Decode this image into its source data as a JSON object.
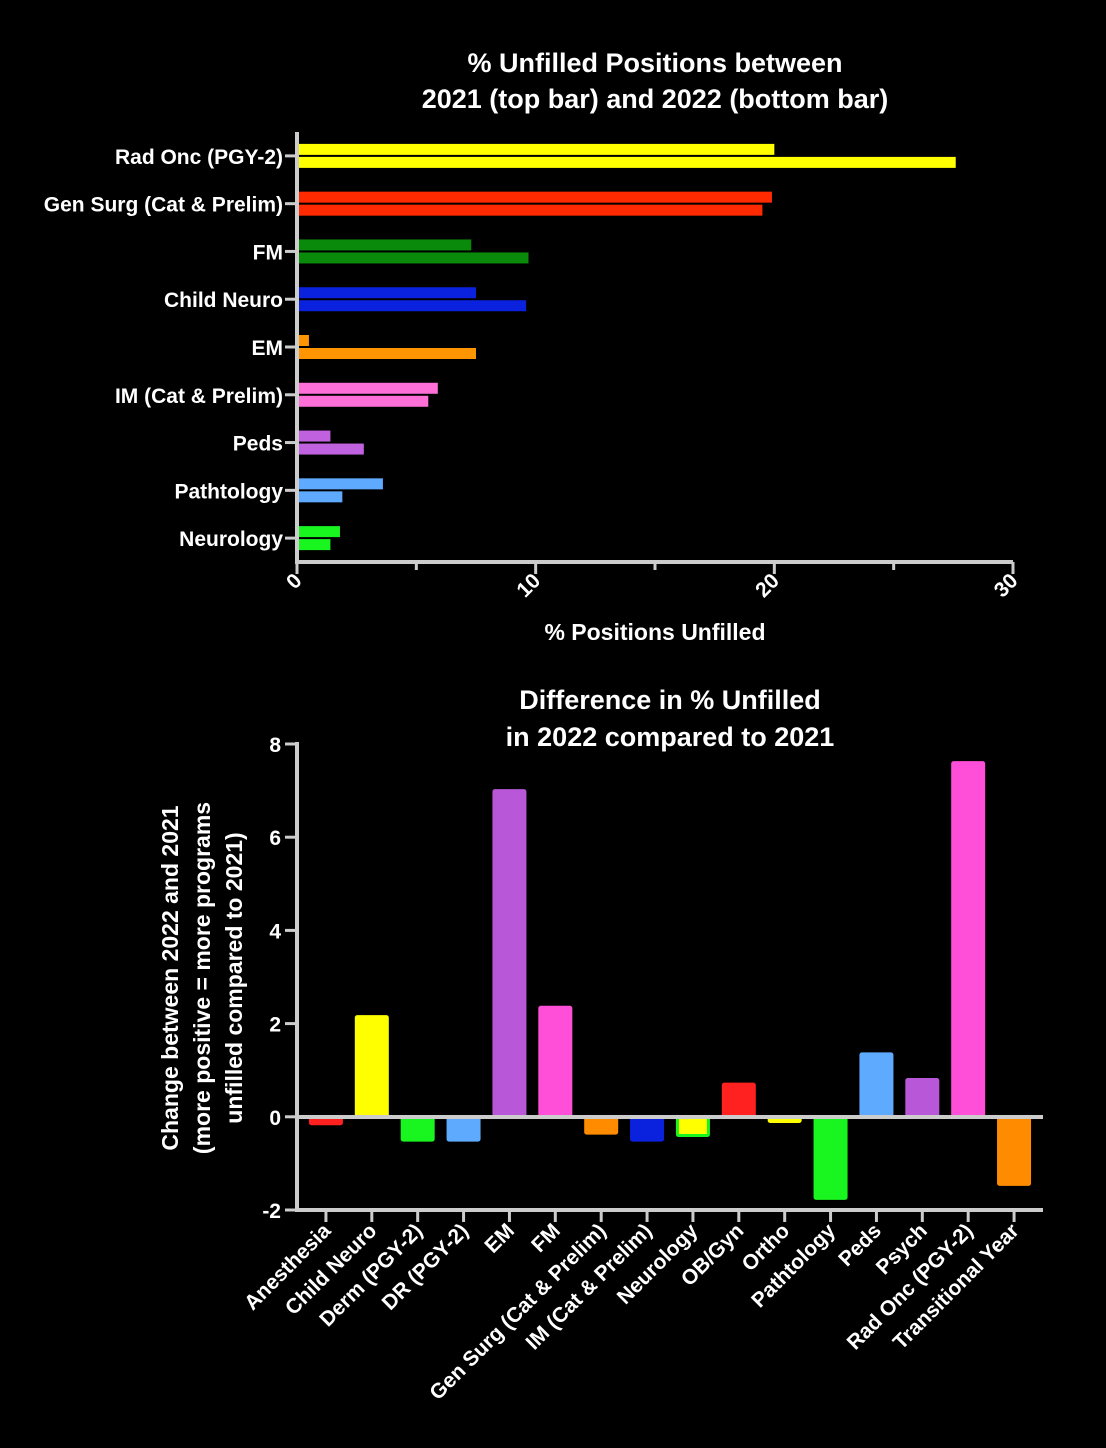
{
  "chart_data": [
    {
      "type": "bar",
      "orientation": "horizontal",
      "title_lines": [
        "% Unfilled Positions between",
        "2021 (top bar) and 2022 (bottom bar)"
      ],
      "xlabel": "% Positions Unfilled",
      "ylabel": "",
      "xlim": [
        0,
        30
      ],
      "x_ticks": [
        "0",
        "10",
        "20",
        "30"
      ],
      "categories": [
        "Rad Onc (PGY-2)",
        "Gen Surg (Cat & Prelim)",
        "FM",
        "Child Neuro",
        "EM",
        "IM (Cat & Prelim)",
        "Peds",
        "Pathtology",
        "Neurology"
      ],
      "colors": [
        "#ffff00",
        "#ff2a00",
        "#0a8a0a",
        "#0a22dd",
        "#ff9500",
        "#ff6fd8",
        "#c062e0",
        "#5eaaff",
        "#19f51f"
      ],
      "series": [
        {
          "name": "2021",
          "values": [
            20.0,
            19.9,
            7.3,
            7.5,
            0.5,
            5.9,
            1.4,
            3.6,
            1.8
          ]
        },
        {
          "name": "2022",
          "values": [
            27.6,
            19.5,
            9.7,
            9.6,
            7.5,
            5.5,
            2.8,
            1.9,
            1.4
          ]
        }
      ]
    },
    {
      "type": "bar",
      "orientation": "vertical",
      "title_lines": [
        "Difference in % Unfilled",
        "in 2022 compared to 2021"
      ],
      "xlabel": "",
      "ylabel_lines": [
        "Change between 2022 and 2021",
        "(more positive = more programs",
        "unfilled compared to 2021)"
      ],
      "ylim": [
        -2,
        8
      ],
      "y_ticks": [
        "-2",
        "0",
        "2",
        "4",
        "6",
        "8"
      ],
      "categories": [
        "Anesthesia",
        "Child Neuro",
        "Derm (PGY-2)",
        "DR (PGY-2)",
        "EM",
        "FM",
        "Gen Surg (Cat & Prelim)",
        "IM (Cat & Prelim)",
        "Neurology",
        "OB/Gyn",
        "Ortho",
        "Pathtology",
        "Peds",
        "Psych",
        "Rad Onc (PGY-2)",
        "Transitional Year"
      ],
      "values": [
        -0.15,
        2.15,
        -0.5,
        -0.5,
        7.0,
        2.35,
        -0.35,
        -0.5,
        -0.4,
        0.7,
        -0.1,
        -1.75,
        1.35,
        0.8,
        7.6,
        -1.45
      ],
      "colors": [
        "#ff2020",
        "#ffff00",
        "#19f51f",
        "#5eaaff",
        "#b857d8",
        "#ff4fd8",
        "#ff8c00",
        "#0a22dd",
        "#ffff00",
        "#ff2020",
        "#ffff00",
        "#19f51f",
        "#5eaaff",
        "#b857d8",
        "#ff4fd8",
        "#ff8c00"
      ],
      "border_colors": [
        "#ff2020",
        "#ffff00",
        "#19f51f",
        "#5eaaff",
        "#b857d8",
        "#ff4fd8",
        "#ff8c00",
        "#0a22dd",
        "#19f51f",
        "#ff2020",
        "#ffff00",
        "#19f51f",
        "#5eaaff",
        "#b857d8",
        "#ff4fd8",
        "#ff8c00"
      ]
    }
  ]
}
